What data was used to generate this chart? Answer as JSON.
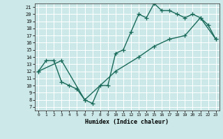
{
  "xlabel": "Humidex (Indice chaleur)",
  "bg_color": "#cce8e8",
  "line_color": "#1a6b5a",
  "grid_color": "#ffffff",
  "xlim": [
    -0.5,
    23.5
  ],
  "ylim": [
    6.5,
    21.5
  ],
  "xticks": [
    0,
    1,
    2,
    3,
    4,
    5,
    6,
    7,
    8,
    9,
    10,
    11,
    12,
    13,
    14,
    15,
    16,
    17,
    18,
    19,
    20,
    21,
    22,
    23
  ],
  "yticks": [
    7,
    8,
    9,
    10,
    11,
    12,
    13,
    14,
    15,
    16,
    17,
    18,
    19,
    20,
    21
  ],
  "line1_x": [
    0,
    1,
    2,
    3,
    4,
    5,
    6,
    7,
    8,
    9,
    10,
    11,
    12,
    13,
    14,
    15,
    16,
    17,
    18,
    19,
    20,
    21,
    22,
    23
  ],
  "line1_y": [
    12,
    13.5,
    13.5,
    10.5,
    10,
    9.5,
    8,
    7.5,
    10,
    10,
    14.5,
    15,
    17.5,
    20,
    19.5,
    21.5,
    20.5,
    20.5,
    20,
    19.5,
    20,
    19.5,
    18.5,
    16.5
  ],
  "line2_x": [
    0,
    3,
    6,
    10,
    13,
    15,
    17,
    19,
    21,
    23
  ],
  "line2_y": [
    12,
    13.5,
    8,
    12,
    14,
    15.5,
    16.5,
    17,
    19.5,
    16.5
  ],
  "marker": "+",
  "marker_size": 4,
  "linewidth": 1.0
}
